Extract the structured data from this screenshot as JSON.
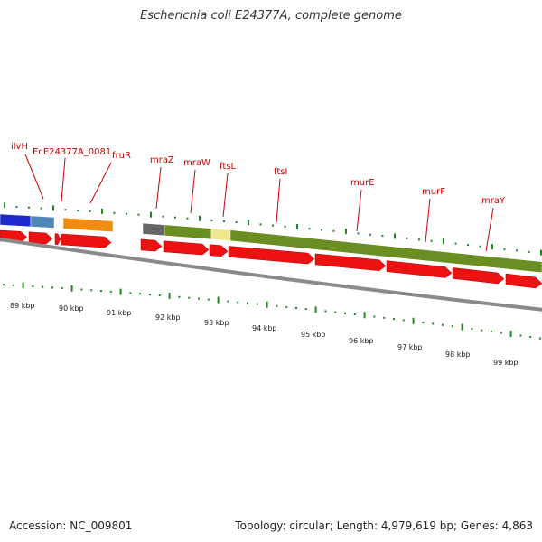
{
  "title": "Escherichia coli E24377A, complete genome",
  "accession": "Accession: NC_009801",
  "summary": "Topology: circular; Length: 4,979,619 bp; Genes: 4,863",
  "gene_labels": [
    "ilvH",
    "EcE24377A_0081",
    "fruR",
    "mraZ",
    "mraW",
    "ftsL",
    "ftsI",
    "murE",
    "murF",
    "mraY"
  ],
  "scale_labels": [
    "89 kbp",
    "90 kbp",
    "91 kbp",
    "92 kbp",
    "93 kbp",
    "94 kbp",
    "95 kbp",
    "96 kbp",
    "97 kbp",
    "98 kbp",
    "99 kbp"
  ],
  "colors": {
    "cds": "#ee1111",
    "cog_green": "#6b8e23",
    "cog_blue": "#1a2acc",
    "cog_steel": "#4f86b8",
    "cog_orange": "#f08c10",
    "cog_gray": "#666666",
    "cog_yellow": "#f0e68c",
    "backbone": "#8a8a8a",
    "ticks": "#1f8a1f",
    "label_lines": "#cc0000"
  }
}
